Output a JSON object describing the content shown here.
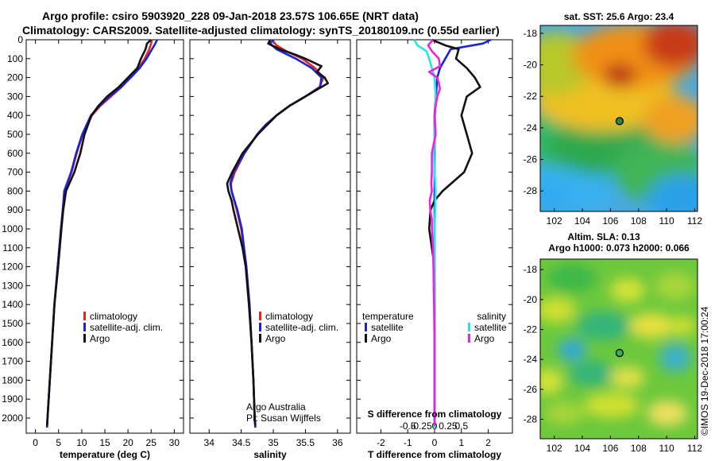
{
  "title": {
    "line1": "Argo profile: csiro 5903920_228 09-Jan-2018 23.57S 106.65E (NRT data)",
    "line2": "Climatology: CARS2009. Satellite-adjusted climatology: synTS_20180109.nc (0.55d earlier)"
  },
  "colors": {
    "climatology": "#e8251e",
    "satellite": "#1a22d6",
    "argo": "#111111",
    "diff_t_sat": "#1a22d6",
    "diff_s_sat": "#22e6ee",
    "diff_s_argo": "#ee22dd"
  },
  "chart_data": [
    {
      "type": "line",
      "xlabel": "temperature (deg C)",
      "ylabel": "",
      "xlim": [
        -2,
        32
      ],
      "ylim": [
        2080,
        0
      ],
      "xticks": [
        0,
        5,
        10,
        15,
        20,
        25,
        30
      ],
      "yticks": [
        0,
        100,
        200,
        300,
        400,
        500,
        600,
        700,
        800,
        900,
        1000,
        1100,
        1200,
        1300,
        1400,
        1500,
        1600,
        1700,
        1800,
        1900,
        2000
      ],
      "legend": [
        "climatology",
        "satellite-adj. clim.",
        "Argo"
      ],
      "series": [
        {
          "name": "climatology",
          "depth": [
            0,
            20,
            50,
            100,
            150,
            200,
            250,
            300,
            350,
            400,
            500,
            600,
            700,
            800,
            900,
            1000,
            1200,
            1400,
            1600,
            1800,
            2000,
            2050
          ],
          "values": [
            25.2,
            25.0,
            24.6,
            23.6,
            22.3,
            20.5,
            18.6,
            16.3,
            14.0,
            12.2,
            10.2,
            8.9,
            7.8,
            6.3,
            5.9,
            5.5,
            4.8,
            4.1,
            3.6,
            3.1,
            2.6,
            2.5
          ]
        },
        {
          "name": "satellite-adj. clim.",
          "depth": [
            0,
            20,
            50,
            100,
            150,
            200,
            250,
            300,
            350,
            400,
            500,
            600,
            700,
            800,
            900,
            1000,
            1200,
            1400,
            1600,
            1800,
            2000,
            2050
          ],
          "values": [
            26.3,
            25.9,
            25.2,
            24.0,
            22.5,
            20.6,
            18.5,
            16.0,
            13.8,
            12.0,
            10.1,
            8.8,
            7.7,
            6.2,
            5.9,
            5.5,
            4.8,
            4.1,
            3.6,
            3.1,
            2.6,
            2.5
          ]
        },
        {
          "name": "Argo",
          "depth": [
            0,
            20,
            50,
            100,
            150,
            200,
            250,
            300,
            350,
            400,
            500,
            600,
            700,
            800,
            900,
            1000,
            1200,
            1400,
            1600,
            1800,
            2000,
            2040
          ],
          "values": [
            25.0,
            24.1,
            23.8,
            22.8,
            22.0,
            20.0,
            18.0,
            15.5,
            13.6,
            12.1,
            10.6,
            9.7,
            8.4,
            6.6,
            6.0,
            5.6,
            4.9,
            4.1,
            3.6,
            3.1,
            2.6,
            2.5
          ]
        }
      ]
    },
    {
      "type": "line",
      "xlabel": "salinity",
      "xlim": [
        33.7,
        36.2
      ],
      "ylim": [
        2080,
        0
      ],
      "xticks": [
        34,
        34.5,
        35,
        35.5,
        36
      ],
      "xticklabels": [
        "34",
        "34.5",
        "35",
        "35.5",
        "36"
      ],
      "legend": [
        "climatology",
        "satellite-adj. clim.",
        "Argo"
      ],
      "annotation": [
        "Argo Australia",
        "PI: Susan Wijffels"
      ],
      "series": [
        {
          "name": "climatology",
          "depth": [
            0,
            30,
            60,
            100,
            150,
            200,
            250,
            300,
            350,
            400,
            450,
            500,
            600,
            700,
            760,
            800,
            900,
            1000,
            1200,
            1400,
            1600,
            1800,
            2000,
            2050
          ],
          "values": [
            34.98,
            35.05,
            35.2,
            35.45,
            35.65,
            35.78,
            35.72,
            35.5,
            35.25,
            35.05,
            34.88,
            34.75,
            34.55,
            34.4,
            34.34,
            34.35,
            34.43,
            34.5,
            34.58,
            34.63,
            34.66,
            34.69,
            34.71,
            34.72
          ]
        },
        {
          "name": "satellite-adj. clim.",
          "depth": [
            0,
            20,
            50,
            100,
            150,
            200,
            250,
            300,
            350,
            400,
            450,
            500,
            600,
            700,
            760,
            800,
            900,
            1000,
            1200,
            1400,
            1600,
            1800,
            2000,
            2050
          ],
          "values": [
            35.0,
            34.95,
            35.05,
            35.35,
            35.6,
            35.75,
            35.73,
            35.5,
            35.25,
            35.05,
            34.88,
            34.75,
            34.55,
            34.38,
            34.33,
            34.35,
            34.44,
            34.51,
            34.58,
            34.63,
            34.66,
            34.69,
            34.71,
            34.72
          ]
        },
        {
          "name": "Argo",
          "depth": [
            0,
            20,
            50,
            80,
            100,
            140,
            170,
            200,
            230,
            260,
            300,
            350,
            400,
            500,
            600,
            700,
            760,
            800,
            850,
            900,
            1000,
            1100,
            1200,
            1400,
            1600,
            1800,
            2000,
            2040
          ],
          "values": [
            34.95,
            34.92,
            35.1,
            35.35,
            35.5,
            35.75,
            35.68,
            35.8,
            35.85,
            35.7,
            35.5,
            35.25,
            35.05,
            34.76,
            34.52,
            34.36,
            34.28,
            34.3,
            34.35,
            34.38,
            34.45,
            34.52,
            34.57,
            34.62,
            34.66,
            34.69,
            34.71,
            34.72
          ]
        }
      ]
    },
    {
      "type": "line",
      "xlabel": "T difference from climatology",
      "xlabel_top": "S difference from climatology",
      "xlim": [
        -2.9,
        2.9
      ],
      "ylim": [
        2080,
        0
      ],
      "xticks": [
        -2,
        -1,
        0,
        1,
        2
      ],
      "xticklabels": [
        "-2",
        "-1",
        "0",
        "1",
        "2"
      ],
      "sticks": [
        -0.5,
        -0.25,
        0,
        0.25,
        0.5
      ],
      "sticklabels": [
        "-0.5",
        "-0.25",
        "0",
        "0.25",
        "0.5"
      ],
      "legend_temperature": [
        "temperature",
        "satellite",
        "Argo"
      ],
      "legend_salinity": [
        "salinity",
        "satellite",
        "Argo"
      ],
      "series": [
        {
          "name": "T satellite",
          "depth": [
            0,
            20,
            50,
            100,
            150,
            200,
            300,
            400,
            500,
            600,
            700,
            800,
            1000,
            1200,
            1400,
            1600,
            1800,
            2000,
            2050
          ],
          "values": [
            2.1,
            1.8,
            0.6,
            0.4,
            0.2,
            0.1,
            0.05,
            0.0,
            0.0,
            0.0,
            0.0,
            0.0,
            0.0,
            0.0,
            0.0,
            0.0,
            0.0,
            0.0,
            0.0
          ]
        },
        {
          "name": "T Argo",
          "depth": [
            0,
            30,
            50,
            100,
            150,
            200,
            250,
            300,
            400,
            500,
            600,
            700,
            800,
            850,
            900,
            1000,
            1100,
            1200,
            1400,
            1600,
            1800,
            2000,
            2040
          ],
          "values": [
            -0.1,
            0.4,
            0.9,
            0.8,
            1.2,
            1.5,
            1.7,
            1.2,
            1.0,
            1.2,
            1.4,
            1.1,
            0.3,
            0.0,
            -0.15,
            -0.2,
            -0.1,
            0.0,
            0.0,
            0.0,
            0.0,
            0.0,
            0.0
          ]
        },
        {
          "name": "S satellite",
          "depth": [
            0,
            30,
            60,
            100,
            150,
            200,
            300,
            400,
            500,
            600,
            700,
            800,
            900,
            1000,
            1200,
            1400,
            1600,
            1800,
            2000,
            2050
          ],
          "values": [
            -0.38,
            -0.32,
            -0.15,
            -0.1,
            -0.05,
            0.0,
            0.02,
            0.01,
            0.0,
            -0.01,
            0.0,
            0.02,
            0.01,
            0.0,
            0.0,
            0.0,
            0.0,
            0.0,
            0.0,
            0.0
          ]
        },
        {
          "name": "S Argo",
          "depth": [
            0,
            30,
            60,
            100,
            140,
            170,
            200,
            230,
            260,
            300,
            350,
            400,
            500,
            600,
            700,
            760,
            800,
            850,
            900,
            950,
            1000,
            1100,
            1200,
            1400,
            1600,
            1800,
            2000,
            2040
          ],
          "values": [
            -0.03,
            -0.12,
            -0.05,
            0.08,
            0.1,
            -0.1,
            0.05,
            0.08,
            0.1,
            0.05,
            0.02,
            0.0,
            0.02,
            -0.05,
            -0.05,
            -0.06,
            -0.05,
            -0.09,
            -0.08,
            -0.05,
            -0.05,
            -0.03,
            -0.02,
            -0.01,
            0.0,
            0.0,
            0.0,
            0.0
          ]
        }
      ]
    }
  ],
  "maps": {
    "sst": {
      "title": "sat. SST: 25.6 Argo: 23.4",
      "xticks": [
        "102",
        "104",
        "106",
        "108",
        "110",
        "112"
      ],
      "yticks": [
        "-18",
        "-20",
        "-22",
        "-24",
        "-26",
        "-28"
      ],
      "marker_lon": 106.65,
      "marker_lat": -23.57
    },
    "sla": {
      "title_line1": "Altim. SLA: 0.13",
      "title_line2": "Argo h1000: 0.073 h2000: 0.066",
      "xticks": [
        "102",
        "104",
        "106",
        "108",
        "110",
        "112"
      ],
      "yticks": [
        "-18",
        "-20",
        "-22",
        "-24",
        "-26",
        "-28"
      ],
      "marker_lon": 106.65,
      "marker_lat": -23.57
    },
    "credit": "©IMOS 19-Dec-2018 17:00:24"
  }
}
